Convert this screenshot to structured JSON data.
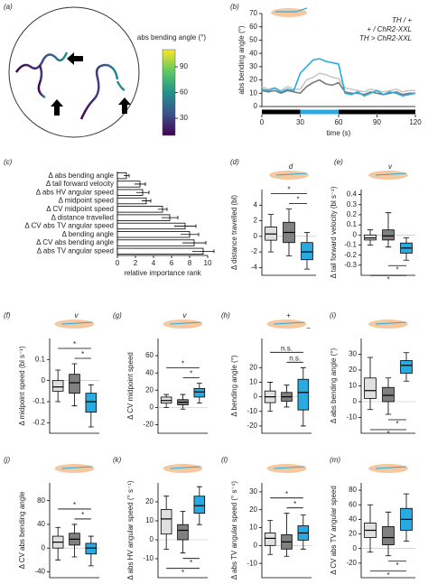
{
  "chart_data": [
    {
      "type": "image",
      "panel": "(a)",
      "colorbar_label": "abs bending angle (°)",
      "clim": [
        10,
        110
      ],
      "cticks": [
        30,
        60,
        90
      ]
    },
    {
      "type": "line",
      "panel": "(b)",
      "xlabel": "time (s)",
      "ylabel": "abs bending angle (°)",
      "xlim": [
        0,
        120
      ],
      "xticks": [
        0,
        30,
        60,
        90,
        120
      ],
      "ylim": [
        0,
        70
      ],
      "yticks": [
        0,
        10,
        20,
        30,
        40,
        50,
        60,
        70
      ],
      "stimulus": [
        30,
        60
      ],
      "stimulus_color": "#29abe2",
      "legend": "upper right",
      "x": [
        0,
        5,
        10,
        15,
        20,
        25,
        30,
        35,
        40,
        45,
        50,
        55,
        60,
        65,
        70,
        75,
        80,
        85,
        90,
        95,
        100,
        105,
        110,
        115,
        120
      ],
      "series": [
        {
          "name": "TH / +",
          "color": "#c8c8c8",
          "values": [
            15,
            13,
            14,
            12,
            15,
            13,
            13,
            20,
            22,
            25,
            24,
            22,
            21,
            14,
            13,
            12,
            11,
            13,
            12,
            11,
            12,
            13,
            11,
            12,
            12
          ]
        },
        {
          "name": "+ / ChR2-XXL",
          "color": "#7a7a7a",
          "values": [
            12,
            11,
            12,
            10,
            12,
            11,
            10,
            15,
            18,
            20,
            17,
            16,
            18,
            11,
            10,
            10,
            9,
            11,
            10,
            9,
            10,
            11,
            9,
            10,
            10
          ]
        },
        {
          "name": "TH > ChR2-XXL",
          "color": "#29abe2",
          "values": [
            13,
            12,
            14,
            11,
            13,
            12,
            25,
            30,
            35,
            36,
            34,
            33,
            32,
            10,
            9,
            11,
            8,
            10,
            12,
            9,
            11,
            10,
            8,
            9,
            10
          ]
        }
      ]
    },
    {
      "type": "hbar",
      "panel": "(c)",
      "xlabel": "relative importance rank",
      "xlim": [
        0,
        10
      ],
      "xticks": [
        0,
        2,
        4,
        6,
        8,
        10
      ],
      "categories": [
        "Δ abs bending angle",
        "Δ tail forward velocity",
        "Δ abs HV angular speed",
        "Δ midpoint speed",
        "Δ CV midpoint speed",
        "Δ distance travelled",
        "Δ CV abs TV angular speed",
        "Δ bending angle",
        "Δ CV abs bending angle",
        "Δ abs TV angular speed"
      ],
      "values": [
        1,
        2.5,
        2.8,
        3.2,
        5,
        5.8,
        7.5,
        8,
        8.5,
        9.5
      ],
      "errors": [
        0.3,
        0.6,
        0.7,
        0.5,
        0.5,
        0.9,
        1.2,
        1,
        1.3,
        1.2
      ]
    },
    {
      "type": "box",
      "panel": "(d)",
      "ylabel": "Δ distance travelled (bl)",
      "icon_labels": [
        "d"
      ],
      "ylim": [
        -5,
        6
      ],
      "yticks": [
        -4,
        -2,
        0,
        2,
        4
      ],
      "boxes": [
        {
          "color": "#e0e0e0",
          "whislo": -2,
          "q1": -0.5,
          "med": 0.3,
          "q3": 1.2,
          "whishi": 2.8
        },
        {
          "color": "#808080",
          "whislo": -2.5,
          "q1": -0.8,
          "med": 0.5,
          "q3": 1.8,
          "whishi": 3.5
        },
        {
          "color": "#29abe2",
          "whislo": -4.2,
          "q1": -3,
          "med": -2,
          "q3": -0.8,
          "whishi": 0.5
        }
      ],
      "bracket_side": "top",
      "brackets": [
        {
          "label": "*",
          "pair": [
            1,
            2
          ]
        },
        {
          "label": "*",
          "pair": [
            0,
            2
          ]
        }
      ]
    },
    {
      "type": "box",
      "panel": "(e)",
      "ylabel": "Δ tail forward velocity (bl s⁻¹)",
      "icon_labels": [
        "v"
      ],
      "ylim": [
        -0.4,
        0.45
      ],
      "yticks": [
        -0.3,
        -0.2,
        -0.1,
        0,
        0.1,
        0.2,
        0.3,
        0.4
      ],
      "boxes": [
        {
          "color": "#e0e0e0",
          "whislo": -0.1,
          "q1": -0.05,
          "med": -0.03,
          "q3": 0,
          "whishi": 0.05
        },
        {
          "color": "#808080",
          "whislo": -0.12,
          "q1": -0.05,
          "med": -0.01,
          "q3": 0.05,
          "whishi": 0.22
        },
        {
          "color": "#29abe2",
          "whislo": -0.25,
          "q1": -0.18,
          "med": -0.13,
          "q3": -0.08,
          "whishi": -0.03
        }
      ],
      "bracket_side": "bottom",
      "brackets": [
        {
          "label": "*",
          "pair": [
            1,
            2
          ]
        },
        {
          "label": "*",
          "pair": [
            0,
            2
          ]
        }
      ]
    },
    {
      "type": "box",
      "panel": "(f)",
      "ylabel": "Δ midpoint speed (bl s⁻¹)",
      "icon_labels": [
        "v"
      ],
      "ylim": [
        -0.25,
        0.2
      ],
      "yticks": [
        -0.2,
        -0.1,
        0,
        0.1
      ],
      "boxes": [
        {
          "color": "#e0e0e0",
          "whislo": -0.1,
          "q1": -0.05,
          "med": -0.03,
          "q3": 0,
          "whishi": 0.05
        },
        {
          "color": "#808080",
          "whislo": -0.12,
          "q1": -0.06,
          "med": -0.01,
          "q3": 0.03,
          "whishi": 0.08
        },
        {
          "color": "#29abe2",
          "whislo": -0.22,
          "q1": -0.15,
          "med": -0.1,
          "q3": -0.06,
          "whishi": -0.02
        }
      ],
      "bracket_side": "top",
      "brackets": [
        {
          "label": "*",
          "pair": [
            1,
            2
          ]
        },
        {
          "label": "*",
          "pair": [
            0,
            2
          ]
        }
      ]
    },
    {
      "type": "box",
      "panel": "(g)",
      "ylabel": "Δ CV midpoint speed",
      "icon_labels": [
        "v"
      ],
      "ylim": [
        -30,
        80
      ],
      "yticks": [
        -20,
        0,
        20,
        40,
        60
      ],
      "boxes": [
        {
          "color": "#e0e0e0",
          "whislo": 0,
          "q1": 5,
          "med": 8,
          "q3": 12,
          "whishi": 15
        },
        {
          "color": "#808080",
          "whislo": -2,
          "q1": 3,
          "med": 6,
          "q3": 9,
          "whishi": 15
        },
        {
          "color": "#29abe2",
          "whislo": 5,
          "q1": 12,
          "med": 18,
          "q3": 22,
          "whishi": 28
        }
      ],
      "bracket_side": "top",
      "brackets": [
        {
          "label": "*",
          "pair": [
            1,
            2
          ]
        },
        {
          "label": "*",
          "pair": [
            0,
            2
          ]
        }
      ]
    },
    {
      "type": "box",
      "panel": "(h)",
      "ylabel": "Δ bending angle (°)",
      "icon_labels": [
        "+",
        "−"
      ],
      "ylim": [
        -25,
        40
      ],
      "yticks": [
        -20,
        -10,
        0,
        10,
        20
      ],
      "boxes": [
        {
          "color": "#e0e0e0",
          "whislo": -10,
          "q1": -4,
          "med": 0,
          "q3": 4,
          "whishi": 10
        },
        {
          "color": "#808080",
          "whislo": -7,
          "q1": -3,
          "med": 0,
          "q3": 3,
          "whishi": 8
        },
        {
          "color": "#29abe2",
          "whislo": -20,
          "q1": -9,
          "med": 3,
          "q3": 12,
          "whishi": 20
        }
      ],
      "bracket_side": "top",
      "brackets": [
        {
          "label": "n.s.",
          "pair": [
            1,
            2
          ]
        },
        {
          "label": "n.s.",
          "pair": [
            0,
            2
          ]
        }
      ]
    },
    {
      "type": "box",
      "panel": "(i)",
      "ylabel": "Δ abs bending angle (°)",
      "icon_labels": [],
      "ylim": [
        -20,
        40
      ],
      "yticks": [
        -10,
        0,
        10,
        20,
        30
      ],
      "boxes": [
        {
          "color": "#e0e0e0",
          "whislo": -5,
          "q1": 2,
          "med": 7,
          "q3": 15,
          "whishi": 28
        },
        {
          "color": "#808080",
          "whislo": -8,
          "q1": 0,
          "med": 4,
          "q3": 9,
          "whishi": 15
        },
        {
          "color": "#29abe2",
          "whislo": 13,
          "q1": 18,
          "med": 23,
          "q3": 26,
          "whishi": 31
        }
      ],
      "bracket_side": "bottom",
      "brackets": [
        {
          "label": "*",
          "pair": [
            1,
            2
          ]
        },
        {
          "label": "*",
          "pair": [
            0,
            2
          ]
        }
      ]
    },
    {
      "type": "box",
      "panel": "(j)",
      "ylabel": "Δ CV abs bending angle",
      "icon_labels": [],
      "ylim": [
        -50,
        110
      ],
      "yticks": [
        -40,
        0,
        40,
        80
      ],
      "boxes": [
        {
          "color": "#e0e0e0",
          "whislo": -20,
          "q1": 0,
          "med": 10,
          "q3": 20,
          "whishi": 35
        },
        {
          "color": "#808080",
          "whislo": -15,
          "q1": 5,
          "med": 15,
          "q3": 25,
          "whishi": 40
        },
        {
          "color": "#29abe2",
          "whislo": -30,
          "q1": -10,
          "med": 0,
          "q3": 8,
          "whishi": 20
        }
      ],
      "bracket_side": "top",
      "brackets": [
        {
          "label": "*",
          "pair": [
            1,
            2
          ]
        },
        {
          "label": "*",
          "pair": [
            0,
            2
          ]
        }
      ]
    },
    {
      "type": "box",
      "panel": "(k)",
      "ylabel": "Δ abs HV angular speed (° s⁻¹)",
      "icon_labels": [],
      "ylim": [
        -20,
        30
      ],
      "yticks": [
        -10,
        0,
        10,
        20
      ],
      "boxes": [
        {
          "color": "#e0e0e0",
          "whislo": -5,
          "q1": 3,
          "med": 11,
          "q3": 16,
          "whishi": 23
        },
        {
          "color": "#808080",
          "whislo": -7,
          "q1": 0,
          "med": 5,
          "q3": 8,
          "whishi": 15
        },
        {
          "color": "#29abe2",
          "whislo": 8,
          "q1": 14,
          "med": 18,
          "q3": 23,
          "whishi": 28
        }
      ],
      "bracket_side": "bottom",
      "brackets": [
        {
          "label": "*",
          "pair": [
            1,
            2
          ]
        },
        {
          "label": "*",
          "pair": [
            0,
            2
          ]
        }
      ]
    },
    {
      "type": "box",
      "panel": "(l)",
      "ylabel": "Δ abs TV angular speed (° s⁻¹)",
      "icon_labels": [],
      "ylim": [
        -18,
        35
      ],
      "yticks": [
        -10,
        0,
        10,
        20,
        30
      ],
      "boxes": [
        {
          "color": "#e0e0e0",
          "whislo": -5,
          "q1": 0,
          "med": 4,
          "q3": 7,
          "whishi": 14
        },
        {
          "color": "#808080",
          "whislo": -6,
          "q1": -2,
          "med": 2,
          "q3": 6,
          "whishi": 18
        },
        {
          "color": "#29abe2",
          "whislo": -2,
          "q1": 3,
          "med": 7,
          "q3": 11,
          "whishi": 17
        }
      ],
      "bracket_side": "top",
      "brackets": [
        {
          "label": "*",
          "pair": [
            1,
            2
          ]
        },
        {
          "label": "*",
          "pair": [
            0,
            2
          ]
        }
      ]
    },
    {
      "type": "box",
      "panel": "(m)",
      "ylabel": "Δ CV abs TV angular speed",
      "icon_labels": [],
      "ylim": [
        -40,
        90
      ],
      "yticks": [
        -20,
        0,
        20,
        40,
        60,
        80
      ],
      "boxes": [
        {
          "color": "#e0e0e0",
          "whislo": -5,
          "q1": 15,
          "med": 25,
          "q3": 35,
          "whishi": 60
        },
        {
          "color": "#808080",
          "whislo": -10,
          "q1": 5,
          "med": 15,
          "q3": 30,
          "whishi": 50
        },
        {
          "color": "#29abe2",
          "whislo": 10,
          "q1": 25,
          "med": 40,
          "q3": 55,
          "whishi": 75
        }
      ],
      "bracket_side": "bottom",
      "brackets": [
        {
          "label": "*",
          "pair": [
            1,
            2
          ]
        },
        {
          "label": "*",
          "pair": [
            0,
            2
          ]
        }
      ]
    }
  ]
}
